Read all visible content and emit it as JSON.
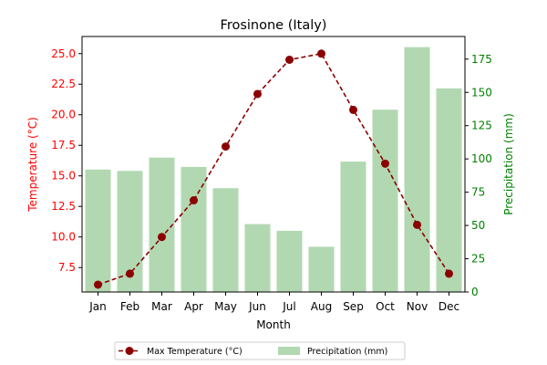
{
  "chart_data": {
    "type": "bar+line",
    "title": "Frosinone (Italy)",
    "xlabel": "Month",
    "ylabel_left": "Temperature (°C)",
    "ylabel_right": "Precipitation (mm)",
    "categories": [
      "Jan",
      "Feb",
      "Mar",
      "Apr",
      "May",
      "Jun",
      "Jul",
      "Aug",
      "Sep",
      "Oct",
      "Nov",
      "Dec"
    ],
    "left_axis": {
      "range": [
        5.5,
        26.4
      ],
      "ticks": [
        7.5,
        10.0,
        12.5,
        15.0,
        17.5,
        20.0,
        22.5,
        25.0
      ],
      "tick_labels": [
        "7.5",
        "10.0",
        "12.5",
        "15.0",
        "17.5",
        "20.0",
        "22.5",
        "25.0"
      ],
      "color": "#ff0000"
    },
    "right_axis": {
      "range": [
        0,
        192
      ],
      "ticks": [
        0,
        25,
        50,
        75,
        100,
        125,
        150,
        175
      ],
      "tick_labels": [
        "0",
        "25",
        "50",
        "75",
        "100",
        "125",
        "150",
        "175"
      ],
      "color": "#008000"
    },
    "series": [
      {
        "name": "Max Temperature (°C)",
        "type": "line",
        "axis": "left",
        "color": "#8b0000",
        "values": [
          6.1,
          7.0,
          10.0,
          13.0,
          17.4,
          21.7,
          24.5,
          25.0,
          20.4,
          16.0,
          11.0,
          7.0
        ]
      },
      {
        "name": "Precipitation (mm)",
        "type": "bar",
        "axis": "right",
        "color": "#b2d8b2",
        "values": [
          92,
          91,
          101,
          94,
          78,
          51,
          46,
          34,
          98,
          137,
          184,
          153
        ]
      }
    ],
    "legend_position": "bottom-center",
    "grid": false
  }
}
